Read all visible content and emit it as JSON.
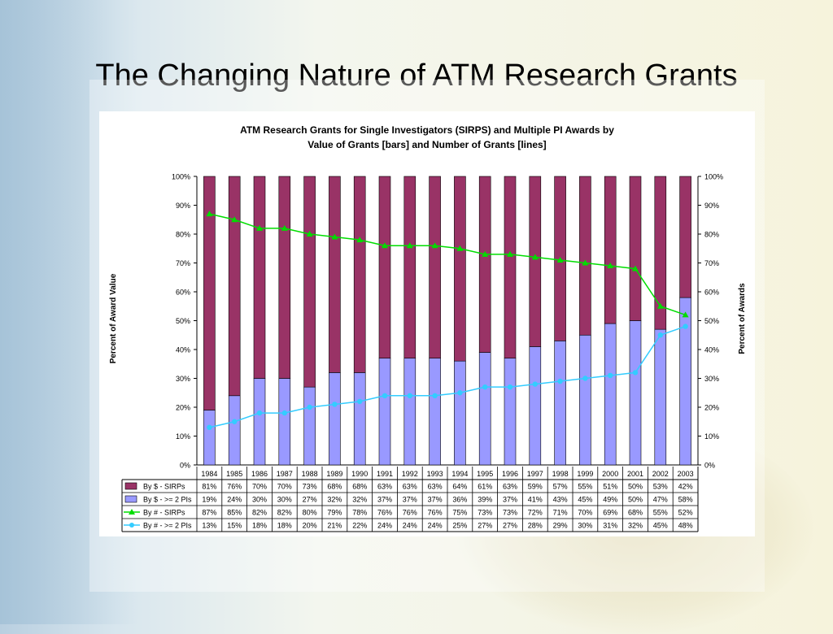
{
  "slide": {
    "title": "The Changing Nature of ATM Research Grants"
  },
  "colors": {
    "bar_sirps": "#993366",
    "bar_multi": "#9999ff",
    "line_sirps": "#00dd00",
    "line_multi": "#33ccff",
    "border": "#000000"
  },
  "chart_data": {
    "type": "bar",
    "title_line1": "ATM Research Grants for Single Investigators (SIRPS) and Multiple PI Awards by",
    "title_line2": "Value of Grants [bars] and Number of Grants [lines]",
    "ylabel": "Percent of Award Value",
    "y2label": "Percent of Awards",
    "ylim": [
      0,
      100
    ],
    "y_ticks": [
      "0%",
      "10%",
      "20%",
      "30%",
      "40%",
      "50%",
      "60%",
      "70%",
      "80%",
      "90%",
      "100%"
    ],
    "stacked": true,
    "categories": [
      "1984",
      "1985",
      "1986",
      "1987",
      "1988",
      "1989",
      "1990",
      "1991",
      "1992",
      "1993",
      "1994",
      "1995",
      "1996",
      "1997",
      "1998",
      "1999",
      "2000",
      "2001",
      "2002",
      "2003"
    ],
    "series": [
      {
        "name": "By $ - SIRPs",
        "kind": "bar",
        "values": [
          81,
          76,
          70,
          70,
          73,
          68,
          68,
          63,
          63,
          63,
          64,
          61,
          63,
          59,
          57,
          55,
          51,
          50,
          53,
          42
        ]
      },
      {
        "name": "By $ - >= 2 PIs",
        "kind": "bar",
        "values": [
          19,
          24,
          30,
          30,
          27,
          32,
          32,
          37,
          37,
          37,
          36,
          39,
          37,
          41,
          43,
          45,
          49,
          50,
          47,
          58
        ]
      },
      {
        "name": "By # - SIRPs",
        "kind": "line",
        "marker": "triangle",
        "values": [
          87,
          85,
          82,
          82,
          80,
          79,
          78,
          76,
          76,
          76,
          75,
          73,
          73,
          72,
          71,
          70,
          69,
          68,
          55,
          52
        ]
      },
      {
        "name": "By # - >= 2 PIs",
        "kind": "line",
        "marker": "circle",
        "values": [
          13,
          15,
          18,
          18,
          20,
          21,
          22,
          24,
          24,
          24,
          25,
          27,
          27,
          28,
          29,
          30,
          31,
          32,
          45,
          48
        ]
      }
    ],
    "grid": false,
    "legend": "data-table-below"
  }
}
